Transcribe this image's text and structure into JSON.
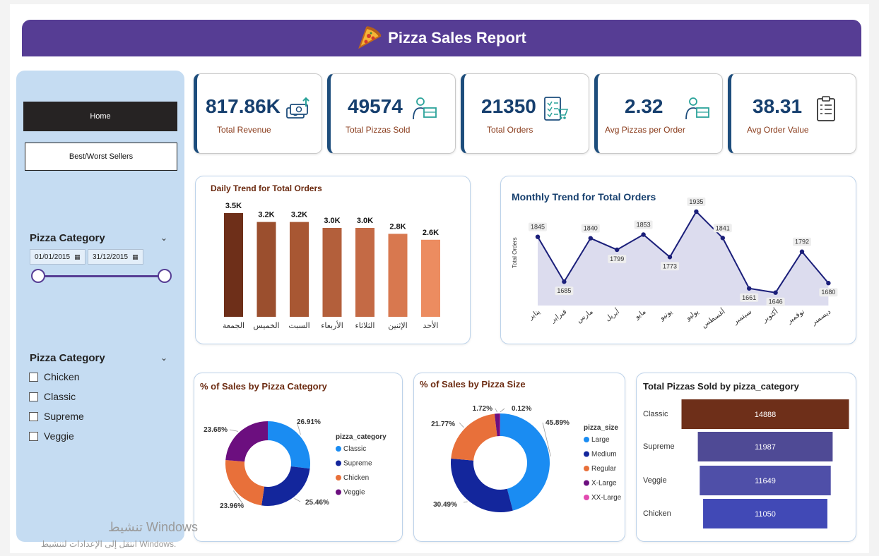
{
  "header": {
    "title": "Pizza Sales Report",
    "icon": "pizza-slice-icon"
  },
  "nav": {
    "home_label": "Home",
    "best_worst_label": "Best/Worst Sellers"
  },
  "date_slicer": {
    "title": "Pizza Category",
    "start_date": "01/01/2015",
    "end_date": "31/12/2015"
  },
  "category_slicer": {
    "title": "Pizza Category",
    "options": [
      "Chicken",
      "Classic",
      "Supreme",
      "Veggie"
    ]
  },
  "kpis": [
    {
      "value": "817.86K",
      "label": "Total Revenue",
      "icon": "money-icon"
    },
    {
      "value": "49574",
      "label": "Total Pizzas Sold",
      "icon": "delivery-person-icon"
    },
    {
      "value": "21350",
      "label": "Total Orders",
      "icon": "order-list-icon"
    },
    {
      "value": "2.32",
      "label": "Avg Pizzas per Order",
      "icon": "delivery-person-icon"
    },
    {
      "value": "38.31",
      "label": "Avg Order Value",
      "icon": "clipboard-icon"
    }
  ],
  "colors": {
    "header_bg": "#563d94",
    "kpi_value": "#163f6e",
    "kpi_label": "#8a3c1c",
    "title_brown": "#6b2a10",
    "title_blue": "#163f6e"
  },
  "watermark": {
    "line1": "تنشيط Windows",
    "line2": "انتقل إلى الإعدادات لتنشيط Windows."
  },
  "chart_data": [
    {
      "type": "bar",
      "title": "Daily Trend for Total Orders",
      "categories": [
        "الجمعة",
        "الخميس",
        "السبت",
        "الأربعاء",
        "الثلاثاء",
        "الإثنين",
        "الأحد"
      ],
      "values": [
        3500,
        3200,
        3200,
        3000,
        3000,
        2800,
        2600
      ],
      "data_labels": [
        "3.5K",
        "3.2K",
        "3.2K",
        "3.0K",
        "3.0K",
        "2.8K",
        "2.6K"
      ],
      "colors": [
        "#6e2f19",
        "#9b4f2e",
        "#a85733",
        "#b35f3b",
        "#c46a45",
        "#d8784f",
        "#ec8c60"
      ]
    },
    {
      "type": "area",
      "title": "Monthly Trend for Total Orders",
      "ylabel": "Total Orders",
      "categories": [
        "يناير",
        "فبراير",
        "مارس",
        "أبريل",
        "مايو",
        "يونيو",
        "يوليو",
        "أغسطس",
        "سبتمبر",
        "أكتوبر",
        "نوفمبر",
        "ديسمبر"
      ],
      "values": [
        1845,
        1685,
        1840,
        1799,
        1853,
        1773,
        1935,
        1841,
        1661,
        1646,
        1792,
        1680
      ],
      "ylim": [
        1600,
        1960
      ],
      "line_color": "#1b1f7a",
      "fill_color": "#dcdcee"
    },
    {
      "type": "pie",
      "title": "% of Sales by Pizza Category",
      "legend_title": "pizza_category",
      "series": [
        {
          "name": "Classic",
          "value": 26.91,
          "label": "26.91%",
          "color": "#1a8cf2"
        },
        {
          "name": "Supreme",
          "value": 25.46,
          "label": "25.46%",
          "color": "#13269c"
        },
        {
          "name": "Chicken",
          "value": 23.96,
          "label": "23.96%",
          "color": "#e8703a"
        },
        {
          "name": "Veggie",
          "value": 23.68,
          "label": "23.68%",
          "color": "#6c0f7f"
        }
      ]
    },
    {
      "type": "pie",
      "title": "% of Sales by Pizza Size",
      "legend_title": "pizza_size",
      "series": [
        {
          "name": "Large",
          "value": 45.89,
          "label": "45.89%",
          "color": "#1a8cf2"
        },
        {
          "name": "Medium",
          "value": 30.49,
          "label": "30.49%",
          "color": "#13269c"
        },
        {
          "name": "Regular",
          "value": 21.77,
          "label": "21.77%",
          "color": "#e8703a"
        },
        {
          "name": "X-Large",
          "value": 1.72,
          "label": "1.72%",
          "color": "#6c0f7f"
        },
        {
          "name": "XX-Large",
          "value": 0.12,
          "label": "0.12%",
          "color": "#e24ab0"
        }
      ]
    },
    {
      "type": "bar",
      "title": "Total Pizzas Sold by pizza_category",
      "categories": [
        "Classic",
        "Supreme",
        "Veggie",
        "Chicken"
      ],
      "values": [
        14888,
        11987,
        11649,
        11050
      ],
      "colors": [
        "#6e2f19",
        "#4f4a95",
        "#4f4fa8",
        "#4149b6"
      ]
    }
  ]
}
